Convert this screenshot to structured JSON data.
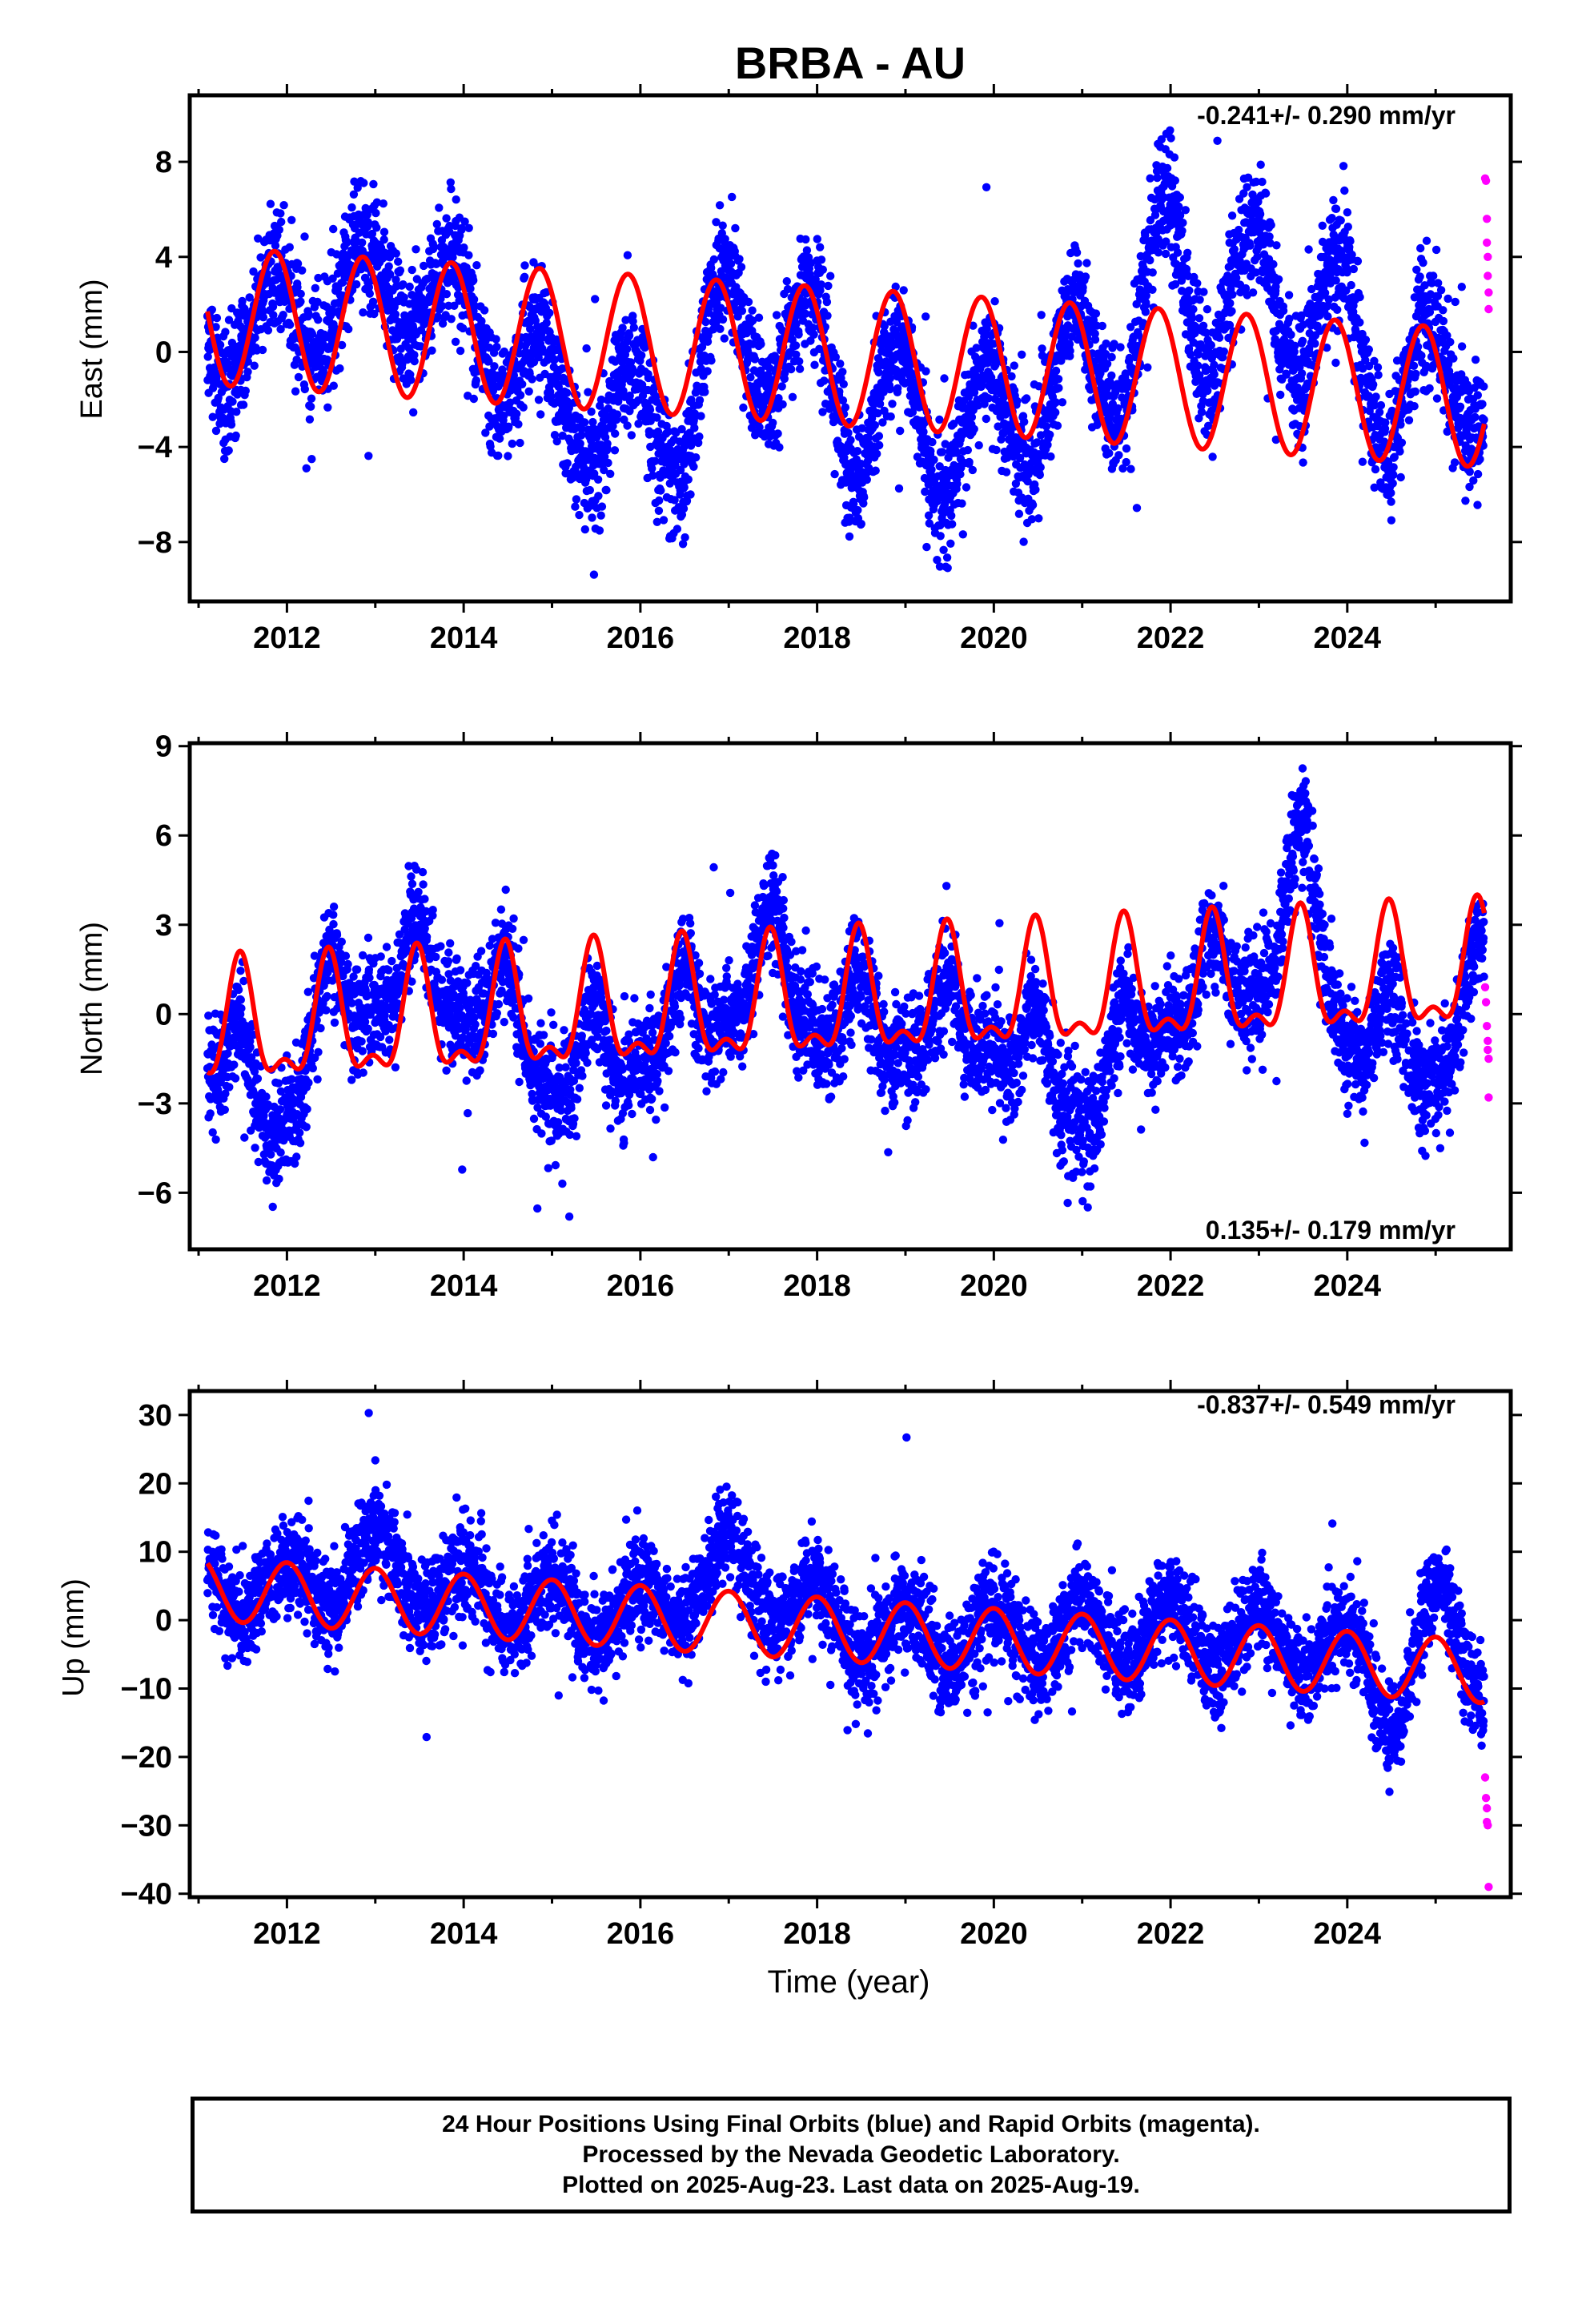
{
  "title": "BRBA - AU",
  "colors": {
    "final_orbits": "#0000ff",
    "rapid_orbits": "#ff00ff",
    "model": "#ff0000"
  },
  "chart_data": [
    {
      "type": "scatter",
      "panel": "east",
      "ylabel": "East (mm)",
      "rate_label": "-0.241+/- 0.290 mm/yr",
      "rate_position": "top-right",
      "xlim": [
        2010.9,
        2025.85
      ],
      "ylim": [
        -10.5,
        10.8
      ],
      "xticks": [
        2012,
        2014,
        2016,
        2018,
        2020,
        2022,
        2024
      ],
      "xtick_labels": [
        "2012",
        "2014",
        "2016",
        "2018",
        "2020",
        "2022",
        "2024"
      ],
      "yticks": [
        -8,
        -4,
        0,
        4,
        8
      ],
      "ytick_labels": [
        "−8",
        "−4",
        "0",
        "4",
        "8"
      ],
      "data_range": [
        2011.1,
        2025.55
      ],
      "series": [
        {
          "name": "Final Orbits",
          "color": "#0000ff",
          "x_range": [
            2011.1,
            2025.55
          ],
          "trend": {
            "x": [
              2011.1,
              2012.0,
              2013.0,
              2014.0,
              2014.5,
              2015.0,
              2015.5,
              2016.0,
              2016.5,
              2017.0,
              2017.5,
              2018.0,
              2018.5,
              2019.0,
              2019.5,
              2020.0,
              2020.5,
              2021.0,
              2021.5,
              2022.0,
              2022.5,
              2023.0,
              2023.5,
              2024.0,
              2024.5,
              2025.0,
              2025.55
            ],
            "y": [
              0.5,
              1.5,
              3.0,
              2.0,
              -0.5,
              -1.5,
              -3.5,
              -2.0,
              -4.0,
              2.5,
              -0.5,
              1.0,
              -4.0,
              -1.0,
              -5.0,
              -2.0,
              -3.0,
              0.5,
              -1.0,
              5.5,
              0.0,
              4.5,
              0.0,
              2.5,
              -3.0,
              0.0,
              -2.0
            ]
          },
          "seasonal_amplitude": 2.0,
          "scatter_spread": 1.3
        },
        {
          "name": "Rapid Orbits",
          "color": "#ff00ff",
          "x": [
            2025.56,
            2025.57,
            2025.58,
            2025.58,
            2025.59,
            2025.59,
            2025.6,
            2025.6
          ],
          "y": [
            7.3,
            7.2,
            5.6,
            4.6,
            4.0,
            3.2,
            2.5,
            1.8
          ]
        },
        {
          "name": "Model",
          "color": "#ff0000",
          "model": {
            "x0": 2018.0,
            "offset": -0.14,
            "rate": -0.241,
            "annual_amp": 2.9,
            "annual_peak": 0.86,
            "semi_amp": 0.0,
            "semi_peak": 0.0
          }
        }
      ]
    },
    {
      "type": "scatter",
      "panel": "north",
      "ylabel": "North (mm)",
      "rate_label": "0.135+/- 0.179 mm/yr",
      "rate_position": "bottom-right",
      "xlim": [
        2010.9,
        2025.85
      ],
      "ylim": [
        -7.9,
        9.1
      ],
      "xticks": [
        2012,
        2014,
        2016,
        2018,
        2020,
        2022,
        2024
      ],
      "xtick_labels": [
        "2012",
        "2014",
        "2016",
        "2018",
        "2020",
        "2022",
        "2024"
      ],
      "yticks": [
        -6,
        -3,
        0,
        3,
        6,
        9
      ],
      "ytick_labels": [
        "−6",
        "−3",
        "0",
        "3",
        "6",
        "9"
      ],
      "data_range": [
        2011.1,
        2025.55
      ],
      "series": [
        {
          "name": "Final Orbits",
          "color": "#0000ff",
          "x_range": [
            2011.1,
            2025.55
          ],
          "trend": {
            "x": [
              2011.1,
              2011.9,
              2012.5,
              2013.5,
              2014.5,
              2015.0,
              2016.0,
              2017.0,
              2017.5,
              2018.0,
              2019.0,
              2020.0,
              2021.0,
              2022.0,
              2023.0,
              2023.5,
              2024.0,
              2025.0,
              2025.55
            ],
            "y": [
              -1.0,
              -3.5,
              0.5,
              1.5,
              0.0,
              -2.0,
              -1.0,
              0.5,
              2.0,
              0.0,
              -0.5,
              -0.5,
              -3.0,
              0.5,
              1.5,
              5.0,
              -0.5,
              -1.5,
              1.0
            ]
          },
          "seasonal_amplitude": 1.8,
          "scatter_spread": 0.9
        },
        {
          "name": "Rapid Orbits",
          "color": "#ff00ff",
          "x": [
            2025.56,
            2025.57,
            2025.58,
            2025.59,
            2025.59,
            2025.6,
            2025.6
          ],
          "y": [
            0.9,
            0.4,
            -0.4,
            -0.9,
            -1.2,
            -1.5,
            -2.8
          ]
        },
        {
          "name": "Model",
          "color": "#ff0000",
          "model": {
            "x0": 2018.0,
            "offset": 0.3,
            "rate": 0.135,
            "annual_amp": 1.85,
            "annual_peak": 0.47,
            "semi_amp": 0.85,
            "semi_peak": 0.47
          }
        }
      ]
    },
    {
      "type": "scatter",
      "panel": "up",
      "ylabel": "Up (mm)",
      "rate_label": "-0.837+/- 0.549 mm/yr",
      "rate_position": "top-right",
      "xlabel": "Time (year)",
      "xlim": [
        2010.9,
        2025.85
      ],
      "ylim": [
        -40.5,
        33.5
      ],
      "xticks": [
        2012,
        2014,
        2016,
        2018,
        2020,
        2022,
        2024
      ],
      "xtick_labels": [
        "2012",
        "2014",
        "2016",
        "2018",
        "2020",
        "2022",
        "2024"
      ],
      "yticks": [
        -40,
        -30,
        -20,
        -10,
        0,
        10,
        20,
        30
      ],
      "ytick_labels": [
        "−40",
        "−30",
        "−20",
        "−10",
        "0",
        "10",
        "20",
        "30"
      ],
      "data_range": [
        2011.1,
        2025.55
      ],
      "series": [
        {
          "name": "Final Orbits",
          "color": "#0000ff",
          "x_range": [
            2011.1,
            2025.55
          ],
          "trend": {
            "x": [
              2011.1,
              2012.0,
              2013.0,
              2014.0,
              2015.0,
              2016.0,
              2017.0,
              2018.0,
              2019.0,
              2020.0,
              2021.0,
              2022.0,
              2023.0,
              2024.0,
              2024.5,
              2025.0,
              2025.55
            ],
            "y": [
              5.0,
              4.0,
              9.0,
              4.0,
              2.0,
              1.0,
              8.0,
              0.0,
              -3.0,
              -2.0,
              -2.0,
              -2.0,
              -3.0,
              -4.0,
              -13.0,
              2.0,
              -8.0
            ]
          },
          "seasonal_amplitude": 4.5,
          "scatter_spread": 3.5
        },
        {
          "name": "Rapid Orbits",
          "color": "#ff00ff",
          "x": [
            2025.56,
            2025.57,
            2025.58,
            2025.58,
            2025.59,
            2025.6
          ],
          "y": [
            -23.0,
            -26.0,
            -27.5,
            -29.5,
            -30.0,
            -39.0
          ]
        },
        {
          "name": "Model",
          "color": "#ff0000",
          "model": {
            "x0": 2018.0,
            "offset": -1.2,
            "rate": -0.837,
            "annual_amp": 4.6,
            "annual_peak": 0.0,
            "semi_amp": 0.0,
            "semi_peak": 0.0
          }
        }
      ]
    }
  ],
  "footer": {
    "line1": "24 Hour Positions Using Final Orbits (blue) and Rapid Orbits (magenta).",
    "line2": "Processed by the Nevada Geodetic Laboratory.",
    "line3": "Plotted on 2025-Aug-23. Last data on 2025-Aug-19."
  }
}
